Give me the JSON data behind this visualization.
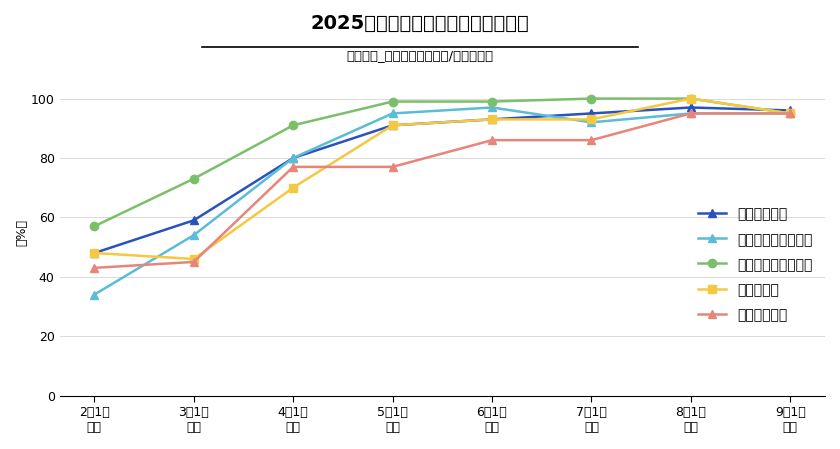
{
  "title": "2025年卒　就職内定率（大学院生）",
  "subtitle": "大学院生_全体（就職志望者/単一回答）",
  "ylabel": "（%）",
  "x_labels": [
    "2月1日\n時点",
    "3月1日\n時点",
    "4月1日\n時点",
    "5月1日\n時点",
    "6月1日\n時点",
    "7月1日\n時点",
    "8月1日\n時点",
    "9月1日\n時点"
  ],
  "x_positions": [
    0,
    1,
    2,
    3,
    4,
    5,
    6,
    7
  ],
  "ylim": [
    0,
    110
  ],
  "yticks": [
    0,
    20,
    40,
    60,
    80,
    100
  ],
  "series": [
    {
      "label": "大学院生全体",
      "color": "#2a52be",
      "marker": "^",
      "data": [
        48,
        59,
        80,
        91,
        93,
        95,
        97,
        96
      ]
    },
    {
      "label": "生物・農学・水産系",
      "color": "#5bbcd6",
      "marker": "^",
      "data": [
        34,
        54,
        80,
        95,
        97,
        92,
        95,
        95
      ]
    },
    {
      "label": "機械・電気・電子系",
      "color": "#7bbf6a",
      "marker": "o",
      "data": [
        57,
        73,
        91,
        99,
        99,
        100,
        100,
        95
      ]
    },
    {
      "label": "情報工学系",
      "color": "#f5c842",
      "marker": "s",
      "data": [
        48,
        46,
        70,
        91,
        93,
        93,
        100,
        95
      ]
    },
    {
      "label": "建築・土木系",
      "color": "#e8857a",
      "marker": "^",
      "data": [
        43,
        45,
        77,
        77,
        86,
        86,
        95,
        95
      ]
    }
  ],
  "background_color": "#ffffff",
  "title_fontsize": 14,
  "subtitle_fontsize": 9.5,
  "legend_fontsize": 10,
  "tick_fontsize": 9,
  "ylabel_fontsize": 9
}
